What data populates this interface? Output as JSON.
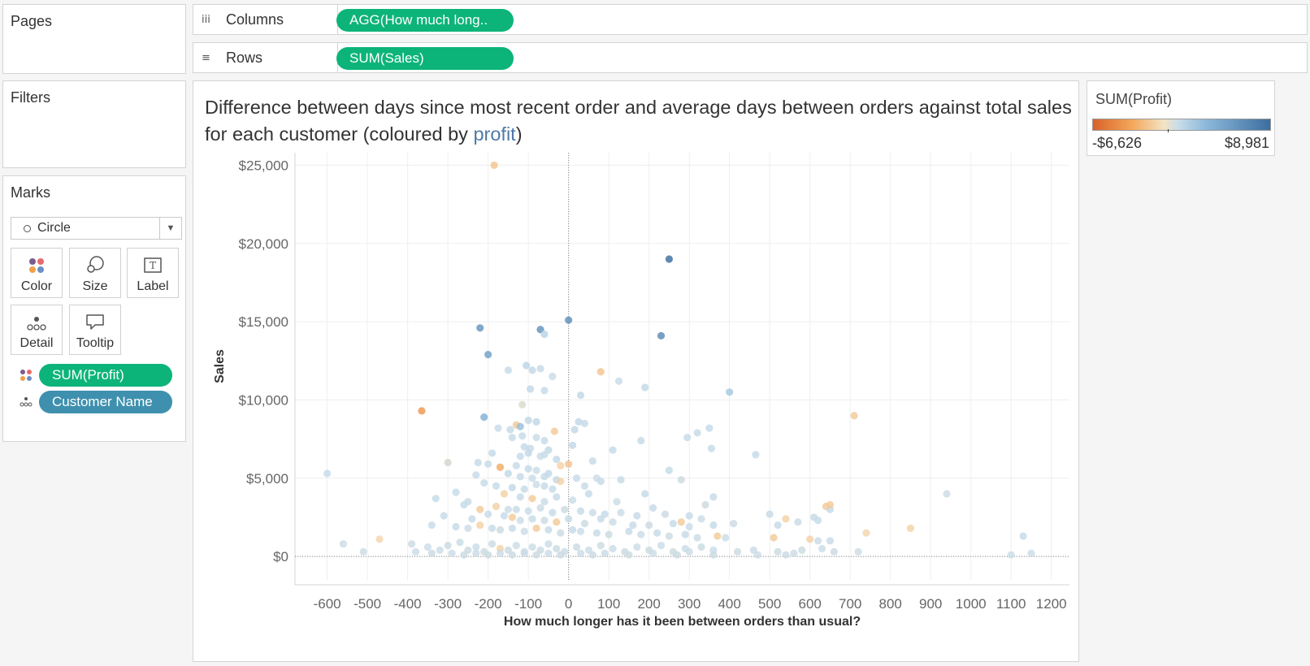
{
  "pages": {
    "title": "Pages"
  },
  "filters": {
    "title": "Filters"
  },
  "shelves": {
    "columns": {
      "label": "Columns",
      "pill": "AGG(How much long.."
    },
    "rows": {
      "label": "Rows",
      "pill": "SUM(Sales)"
    }
  },
  "marks": {
    "title": "Marks",
    "type": "Circle",
    "buttons": {
      "color": "Color",
      "size": "Size",
      "label": "Label",
      "detail": "Detail",
      "tooltip": "Tooltip"
    },
    "fields": {
      "color_field": "SUM(Profit)",
      "detail_field": "Customer Name"
    }
  },
  "title": {
    "before": "Difference between days since most recent order and average days between orders against total sales for each customer (coloured by ",
    "highlight": "profit",
    "after": ")"
  },
  "legend": {
    "title": "SUM(Profit)",
    "min": "-$6,626",
    "max": "$8,981"
  },
  "chart_data": {
    "type": "scatter",
    "xlabel": "How much longer has it been between orders than usual?",
    "ylabel": "Sales",
    "xlim": [
      -680,
      1245
    ],
    "ylim": [
      -1500,
      25800
    ],
    "xticks": [
      -600,
      -500,
      -400,
      -300,
      -200,
      -100,
      0,
      100,
      200,
      300,
      400,
      500,
      600,
      700,
      800,
      900,
      1000,
      1100,
      1200
    ],
    "xtick_labels": [
      "-600",
      "-500",
      "-400",
      "-300",
      "-200",
      "-100",
      "0",
      "100",
      "200",
      "300",
      "400",
      "500",
      "600",
      "700",
      "800",
      "900",
      "1000",
      "1100",
      "1200"
    ],
    "yticks": [
      0,
      5000,
      10000,
      15000,
      20000,
      25000
    ],
    "ytick_labels": [
      "$0",
      "$5,000",
      "$10,000",
      "$15,000",
      "$20,000",
      "$25,000"
    ],
    "reference_lines": {
      "x": 0,
      "y": 0
    },
    "grid": true,
    "color_scale": {
      "field": "SUM(Profit)",
      "min": -6626,
      "max": 8981
    },
    "points": [
      [
        -185,
        25000,
        -1800
      ],
      [
        250,
        19000,
        8900
      ],
      [
        -220,
        14600,
        6000
      ],
      [
        -70,
        14500,
        6200
      ],
      [
        0,
        15100,
        6500
      ],
      [
        230,
        14100,
        6800
      ],
      [
        -60,
        14200,
        1500
      ],
      [
        -200,
        12900,
        5200
      ],
      [
        80,
        11800,
        -1800
      ],
      [
        -105,
        12200,
        1400
      ],
      [
        -90,
        11900,
        1200
      ],
      [
        -70,
        12000,
        1000
      ],
      [
        -150,
        11900,
        1000
      ],
      [
        -40,
        11500,
        900
      ],
      [
        125,
        11200,
        900
      ],
      [
        190,
        10800,
        1200
      ],
      [
        400,
        10500,
        2300
      ],
      [
        -95,
        10700,
        1200
      ],
      [
        -60,
        10600,
        1000
      ],
      [
        30,
        10300,
        1200
      ],
      [
        -365,
        9300,
        -4000
      ],
      [
        710,
        9000,
        -1500
      ],
      [
        -210,
        8900,
        4000
      ],
      [
        -115,
        9700,
        100
      ],
      [
        -100,
        8700,
        1200
      ],
      [
        -80,
        8600,
        1300
      ],
      [
        25,
        8600,
        1200
      ],
      [
        40,
        8500,
        1000
      ],
      [
        350,
        8200,
        1100
      ],
      [
        320,
        7900,
        1000
      ],
      [
        -130,
        8400,
        -1500
      ],
      [
        -120,
        8300,
        2800
      ],
      [
        -175,
        8200,
        900
      ],
      [
        -145,
        8100,
        1100
      ],
      [
        -35,
        8000,
        -1500
      ],
      [
        15,
        8100,
        1200
      ],
      [
        180,
        7400,
        1000
      ],
      [
        295,
        7600,
        1000
      ],
      [
        -115,
        7700,
        1100
      ],
      [
        -140,
        7600,
        1000
      ],
      [
        -80,
        7600,
        900
      ],
      [
        -60,
        7400,
        1000
      ],
      [
        10,
        7100,
        1200
      ],
      [
        -110,
        7000,
        1100
      ],
      [
        -95,
        6900,
        1000
      ],
      [
        -50,
        6800,
        1200
      ],
      [
        110,
        6800,
        1000
      ],
      [
        -190,
        6600,
        1100
      ],
      [
        -100,
        6600,
        1200
      ],
      [
        -60,
        6500,
        1000
      ],
      [
        -30,
        6200,
        1200
      ],
      [
        -120,
        6400,
        1000
      ],
      [
        -70,
        6400,
        800
      ],
      [
        355,
        6900,
        1100
      ],
      [
        465,
        6500,
        1100
      ],
      [
        -600,
        5300,
        1100
      ],
      [
        -300,
        6000,
        200
      ],
      [
        -225,
        6000,
        1100
      ],
      [
        -200,
        5900,
        1000
      ],
      [
        -170,
        5700,
        -3000
      ],
      [
        0,
        5900,
        -1800
      ],
      [
        -20,
        5800,
        -1200
      ],
      [
        60,
        6100,
        1000
      ],
      [
        -130,
        5800,
        1000
      ],
      [
        -100,
        5600,
        1100
      ],
      [
        -80,
        5500,
        800
      ],
      [
        -50,
        5300,
        1200
      ],
      [
        250,
        5500,
        1100
      ],
      [
        -230,
        5200,
        1000
      ],
      [
        -150,
        5300,
        1200
      ],
      [
        -120,
        5100,
        1000
      ],
      [
        -90,
        5000,
        900
      ],
      [
        -60,
        5100,
        1100
      ],
      [
        -30,
        4900,
        1200
      ],
      [
        -20,
        4800,
        -1200
      ],
      [
        20,
        5000,
        1000
      ],
      [
        70,
        5000,
        800
      ],
      [
        130,
        4900,
        1000
      ],
      [
        -210,
        4700,
        1000
      ],
      [
        -180,
        4500,
        1100
      ],
      [
        -140,
        4400,
        1200
      ],
      [
        -110,
        4300,
        1000
      ],
      [
        -80,
        4600,
        800
      ],
      [
        -60,
        4500,
        1000
      ],
      [
        -40,
        4300,
        1100
      ],
      [
        40,
        4500,
        900
      ],
      [
        80,
        4800,
        1000
      ],
      [
        190,
        4000,
        1000
      ],
      [
        280,
        4900,
        600
      ],
      [
        360,
        3800,
        1000
      ],
      [
        -280,
        4100,
        1100
      ],
      [
        -250,
        3500,
        1000
      ],
      [
        -160,
        4000,
        -1200
      ],
      [
        -120,
        3800,
        1000
      ],
      [
        -90,
        3700,
        -1500
      ],
      [
        -60,
        3500,
        900
      ],
      [
        -30,
        3800,
        1000
      ],
      [
        10,
        3600,
        800
      ],
      [
        50,
        4000,
        1100
      ],
      [
        120,
        3500,
        800
      ],
      [
        210,
        3100,
        1000
      ],
      [
        340,
        3300,
        600
      ],
      [
        -330,
        3700,
        1100
      ],
      [
        -260,
        3300,
        1000
      ],
      [
        -220,
        3000,
        -1500
      ],
      [
        -180,
        3200,
        -1200
      ],
      [
        -150,
        3000,
        800
      ],
      [
        -130,
        3000,
        1000
      ],
      [
        -100,
        2900,
        900
      ],
      [
        -70,
        3100,
        800
      ],
      [
        -40,
        2800,
        1000
      ],
      [
        -10,
        3000,
        700
      ],
      [
        30,
        2900,
        1000
      ],
      [
        60,
        2800,
        800
      ],
      [
        90,
        2700,
        1000
      ],
      [
        130,
        2800,
        800
      ],
      [
        170,
        2600,
        1000
      ],
      [
        240,
        2700,
        700
      ],
      [
        300,
        2600,
        1000
      ],
      [
        330,
        2400,
        800
      ],
      [
        500,
        2700,
        1000
      ],
      [
        540,
        2400,
        -1200
      ],
      [
        610,
        2500,
        1000
      ],
      [
        640,
        3200,
        -1500
      ],
      [
        620,
        2300,
        1000
      ],
      [
        650,
        3000,
        1000
      ],
      [
        650,
        3300,
        -1500
      ],
      [
        -310,
        2600,
        1000
      ],
      [
        -240,
        2400,
        1100
      ],
      [
        -200,
        2700,
        900
      ],
      [
        -160,
        2600,
        1000
      ],
      [
        -140,
        2500,
        -1500
      ],
      [
        -120,
        2300,
        800
      ],
      [
        -90,
        2400,
        1000
      ],
      [
        -60,
        2300,
        700
      ],
      [
        -30,
        2200,
        -1500
      ],
      [
        0,
        2400,
        1000
      ],
      [
        40,
        2100,
        700
      ],
      [
        80,
        2400,
        1000
      ],
      [
        110,
        2200,
        800
      ],
      [
        160,
        2000,
        1000
      ],
      [
        200,
        2000,
        700
      ],
      [
        260,
        2100,
        1000
      ],
      [
        280,
        2200,
        -1500
      ],
      [
        300,
        1900,
        800
      ],
      [
        360,
        2000,
        1000
      ],
      [
        410,
        2100,
        700
      ],
      [
        520,
        2000,
        1000
      ],
      [
        570,
        2200,
        700
      ],
      [
        -340,
        2000,
        900
      ],
      [
        -280,
        1900,
        1000
      ],
      [
        -250,
        1800,
        800
      ],
      [
        -220,
        2000,
        -1200
      ],
      [
        -190,
        1800,
        1000
      ],
      [
        -170,
        1700,
        700
      ],
      [
        -140,
        1800,
        1000
      ],
      [
        -110,
        1600,
        800
      ],
      [
        -80,
        1800,
        -1500
      ],
      [
        -50,
        1700,
        1000
      ],
      [
        -20,
        1500,
        700
      ],
      [
        10,
        1700,
        1000
      ],
      [
        30,
        1600,
        800
      ],
      [
        70,
        1500,
        1000
      ],
      [
        100,
        1400,
        700
      ],
      [
        150,
        1600,
        1000
      ],
      [
        180,
        1400,
        800
      ],
      [
        220,
        1500,
        1000
      ],
      [
        250,
        1300,
        700
      ],
      [
        290,
        1400,
        1000
      ],
      [
        320,
        1200,
        800
      ],
      [
        370,
        1300,
        -1500
      ],
      [
        390,
        1200,
        800
      ],
      [
        510,
        1200,
        -1500
      ],
      [
        600,
        1100,
        -1200
      ],
      [
        620,
        1000,
        800
      ],
      [
        650,
        1000,
        1000
      ],
      [
        740,
        1500,
        -1000
      ],
      [
        850,
        1800,
        -1200
      ],
      [
        940,
        4000,
        800
      ],
      [
        1130,
        1300,
        1000
      ],
      [
        -560,
        800,
        800
      ],
      [
        -470,
        1100,
        -1000
      ],
      [
        -510,
        300,
        800
      ],
      [
        -390,
        800,
        700
      ],
      [
        -350,
        600,
        800
      ],
      [
        -320,
        400,
        800
      ],
      [
        -300,
        700,
        700
      ],
      [
        -270,
        900,
        800
      ],
      [
        -250,
        400,
        700
      ],
      [
        -230,
        600,
        800
      ],
      [
        -210,
        300,
        700
      ],
      [
        -190,
        800,
        800
      ],
      [
        -170,
        500,
        -1200
      ],
      [
        -150,
        400,
        700
      ],
      [
        -130,
        700,
        800
      ],
      [
        -110,
        300,
        700
      ],
      [
        -90,
        600,
        800
      ],
      [
        -70,
        400,
        700
      ],
      [
        -50,
        800,
        800
      ],
      [
        -30,
        500,
        700
      ],
      [
        -10,
        300,
        800
      ],
      [
        20,
        600,
        700
      ],
      [
        50,
        400,
        800
      ],
      [
        80,
        700,
        700
      ],
      [
        110,
        500,
        800
      ],
      [
        140,
        300,
        700
      ],
      [
        170,
        600,
        800
      ],
      [
        200,
        400,
        700
      ],
      [
        230,
        700,
        800
      ],
      [
        260,
        300,
        700
      ],
      [
        290,
        500,
        800
      ],
      [
        330,
        600,
        700
      ],
      [
        360,
        400,
        800
      ],
      [
        420,
        300,
        700
      ],
      [
        460,
        400,
        800
      ],
      [
        520,
        300,
        700
      ],
      [
        560,
        200,
        800
      ],
      [
        580,
        400,
        700
      ],
      [
        630,
        500,
        800
      ],
      [
        660,
        300,
        700
      ],
      [
        720,
        300,
        800
      ],
      [
        1100,
        100,
        800
      ],
      [
        1150,
        200,
        800
      ],
      [
        -380,
        300,
        800
      ],
      [
        -340,
        200,
        700
      ],
      [
        -290,
        200,
        800
      ],
      [
        -260,
        100,
        700
      ],
      [
        -230,
        200,
        800
      ],
      [
        -200,
        100,
        700
      ],
      [
        -170,
        200,
        800
      ],
      [
        -140,
        100,
        700
      ],
      [
        -110,
        200,
        800
      ],
      [
        -80,
        100,
        700
      ],
      [
        -50,
        200,
        800
      ],
      [
        -20,
        100,
        700
      ],
      [
        30,
        200,
        800
      ],
      [
        60,
        100,
        700
      ],
      [
        90,
        200,
        800
      ],
      [
        150,
        100,
        700
      ],
      [
        210,
        200,
        800
      ],
      [
        270,
        100,
        700
      ],
      [
        300,
        300,
        800
      ],
      [
        360,
        100,
        700
      ],
      [
        470,
        100,
        800
      ],
      [
        540,
        100,
        700
      ]
    ]
  }
}
